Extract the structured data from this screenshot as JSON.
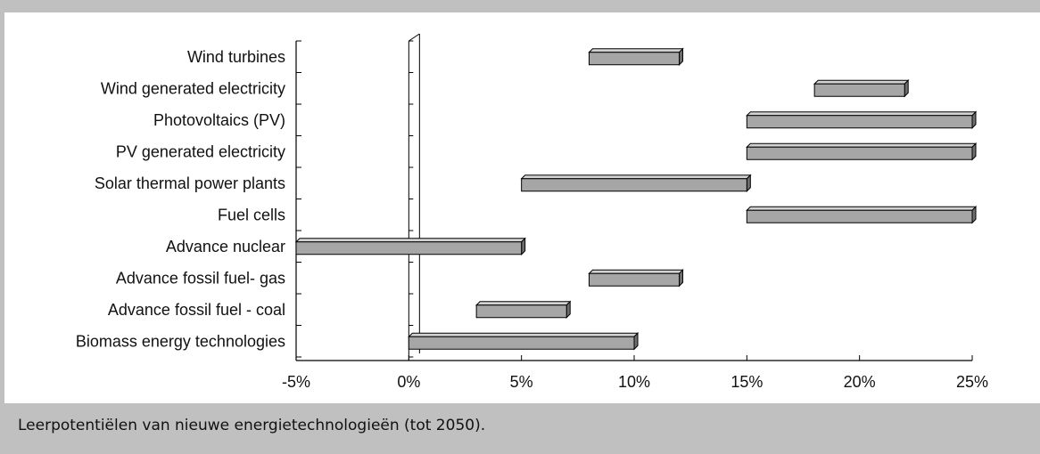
{
  "colors": {
    "background": "#c0c0c0",
    "panel": "#ffffff",
    "bar_front": "#a6a6a6",
    "bar_top": "#d2d2d2",
    "bar_side": "#6e6e6e",
    "stroke": "#000000"
  },
  "caption": "Leerpotentiëlen van nieuwe energietechnologieën (tot 2050).",
  "chart_data": {
    "type": "bar",
    "orientation": "horizontal",
    "style": "floating-range-3d",
    "title": "",
    "xlabel": "",
    "ylabel": "",
    "xlim": [
      -5,
      25
    ],
    "x_ticks": [
      {
        "value": -5,
        "label": "-5%"
      },
      {
        "value": 0,
        "label": "0%"
      },
      {
        "value": 5,
        "label": "5%"
      },
      {
        "value": 10,
        "label": "10%"
      },
      {
        "value": 15,
        "label": "15%"
      },
      {
        "value": 20,
        "label": "20%"
      },
      {
        "value": 25,
        "label": "25%"
      }
    ],
    "grid": false,
    "legend": "none",
    "categories": [
      "Wind turbines",
      "Wind generated electricity",
      "Photovoltaics (PV)",
      "PV generated electricity",
      "Solar thermal power plants",
      "Fuel cells",
      "Advance nuclear",
      "Advance fossil fuel- gas",
      "Advance fossil fuel - coal",
      "Biomass energy technologies"
    ],
    "ranges": [
      [
        8,
        12
      ],
      [
        18,
        22
      ],
      [
        15,
        25
      ],
      [
        15,
        25
      ],
      [
        5,
        15
      ],
      [
        15,
        25
      ],
      [
        -5,
        5
      ],
      [
        8,
        12
      ],
      [
        3,
        7
      ],
      [
        0,
        10
      ]
    ]
  }
}
